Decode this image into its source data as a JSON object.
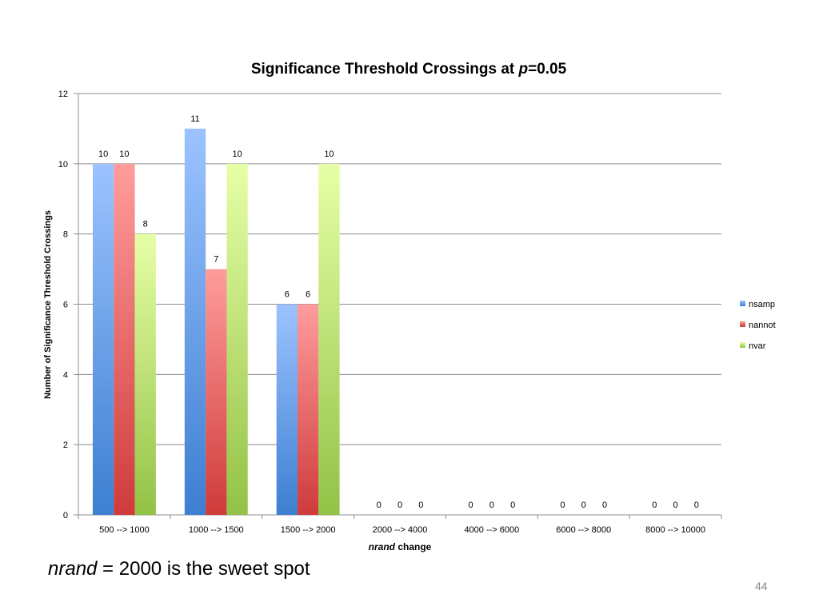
{
  "chart_data": {
    "type": "bar",
    "title": {
      "prefix": "Significance Threshold Crossings at ",
      "italic": "p",
      "suffix": "=0.05"
    },
    "xlabel": {
      "italic": "nrand",
      "suffix": " change"
    },
    "ylabel": "Number of Significance Threshold Crossings",
    "ylim": [
      0,
      12
    ],
    "yticks": [
      0,
      2,
      4,
      6,
      8,
      10,
      12
    ],
    "grid": true,
    "legend": "right",
    "categories": [
      "500 --> 1000",
      "1000 --> 1500",
      "1500 --> 2000",
      "2000 --> 4000",
      "4000 --> 6000",
      "6000 --> 8000",
      "8000 --> 10000"
    ],
    "series": [
      {
        "name": "nsamp",
        "values": [
          10,
          11,
          6,
          0,
          0,
          0,
          0
        ],
        "color_light": "#9cc3ff",
        "color_dark": "#3d7fd1"
      },
      {
        "name": "nannot",
        "values": [
          10,
          7,
          6,
          0,
          0,
          0,
          0
        ],
        "color_light": "#ff9c9c",
        "color_dark": "#cf3b3b"
      },
      {
        "name": "nvar",
        "values": [
          8,
          10,
          10,
          0,
          0,
          0,
          0
        ],
        "color_light": "#e6ffa6",
        "color_dark": "#93c247"
      }
    ]
  },
  "footnote": {
    "italic": "nrand",
    "rest": " = 2000 is the sweet spot"
  },
  "page_number": "44"
}
